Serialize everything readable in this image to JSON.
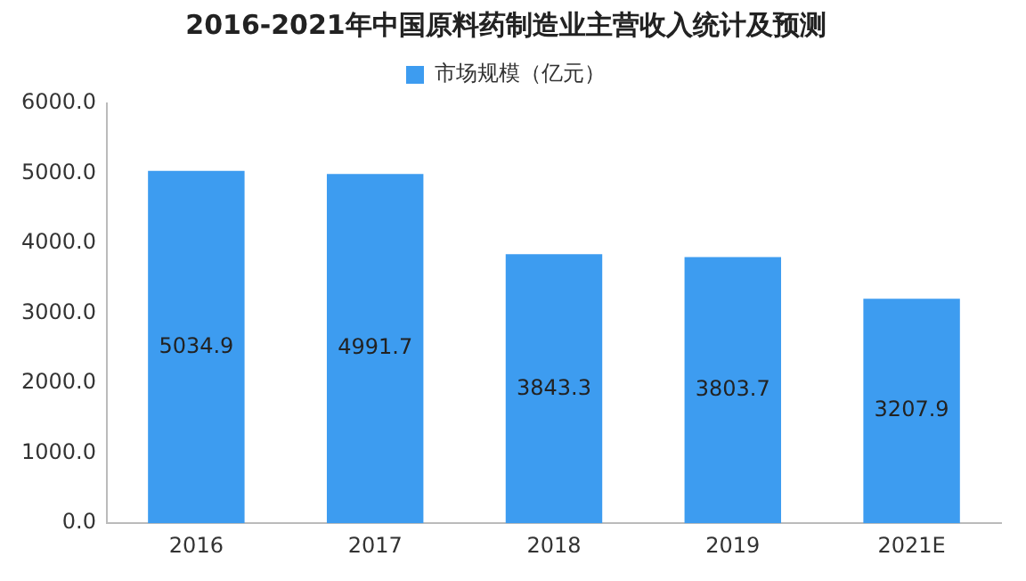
{
  "chart_data": {
    "type": "bar",
    "title": "2016-2021年中国原料药制造业主营收入统计及预测",
    "categories": [
      "2016",
      "2017",
      "2018",
      "2019",
      "2021E"
    ],
    "series": [
      {
        "name": "市场规模（亿元）",
        "color": "#3d9cf0",
        "values": [
          5034.9,
          4991.7,
          3843.3,
          3803.7,
          3207.9
        ]
      }
    ],
    "ylim": [
      0,
      6000
    ],
    "yticks": [
      {
        "value": 0,
        "label": "0.0"
      },
      {
        "value": 1000,
        "label": "1000.0"
      },
      {
        "value": 2000,
        "label": "2000.0"
      },
      {
        "value": 3000,
        "label": "3000.0"
      },
      {
        "value": 4000,
        "label": "4000.0"
      },
      {
        "value": 5000,
        "label": "5000.0"
      },
      {
        "value": 6000,
        "label": "6000.0"
      }
    ],
    "grid": false,
    "legend": "top",
    "data_labels": true
  }
}
